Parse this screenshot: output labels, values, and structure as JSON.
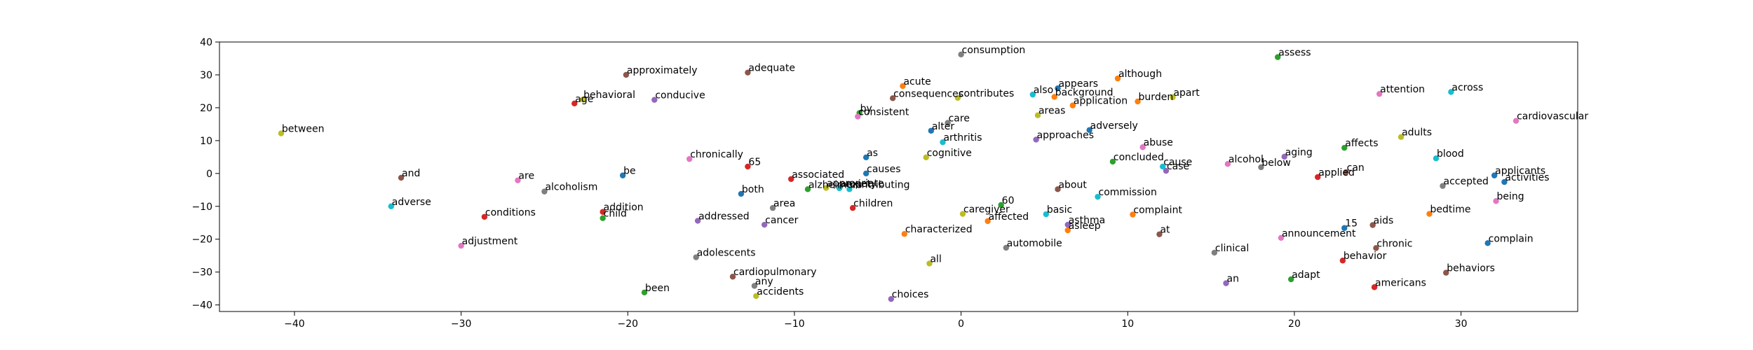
{
  "chart_data": {
    "type": "scatter",
    "title": "",
    "xlabel": "",
    "ylabel": "",
    "xlim": [
      -44.5,
      37
    ],
    "ylim": [
      -42,
      40
    ],
    "xticks": [
      -40,
      -30,
      -20,
      -10,
      0,
      10,
      20,
      30
    ],
    "yticks": [
      -40,
      -30,
      -20,
      -10,
      0,
      10,
      20,
      30,
      40
    ],
    "grid": false,
    "legend": "none",
    "palette": [
      "#1f77b4",
      "#ff7f0e",
      "#2ca02c",
      "#d62728",
      "#9467bd",
      "#8c564b",
      "#e377c2",
      "#7f7f7f",
      "#bcbd22",
      "#17becf"
    ],
    "points": [
      {
        "label": "between",
        "x": -40.8,
        "y": 12.2,
        "c": 8
      },
      {
        "label": "and",
        "x": -33.6,
        "y": -1.3,
        "c": 5
      },
      {
        "label": "adverse",
        "x": -34.2,
        "y": -10.0,
        "c": 9
      },
      {
        "label": "adjustment",
        "x": -30.0,
        "y": -22.0,
        "c": 6
      },
      {
        "label": "conditions",
        "x": -28.6,
        "y": -13.2,
        "c": 3
      },
      {
        "label": "are",
        "x": -26.6,
        "y": -2.1,
        "c": 6
      },
      {
        "label": "alcoholism",
        "x": -25.0,
        "y": -5.5,
        "c": 7
      },
      {
        "label": "age",
        "x": -23.2,
        "y": 21.3,
        "c": 3
      },
      {
        "label": "behavioral",
        "x": -22.7,
        "y": 22.5,
        "c": 8
      },
      {
        "label": "addition",
        "x": -21.5,
        "y": -11.7,
        "c": 3
      },
      {
        "label": "child",
        "x": -21.5,
        "y": -13.6,
        "c": 2
      },
      {
        "label": "be",
        "x": -20.3,
        "y": -0.6,
        "c": 0
      },
      {
        "label": "approximately",
        "x": -20.1,
        "y": 30.0,
        "c": 5
      },
      {
        "label": "been",
        "x": -19.0,
        "y": -36.2,
        "c": 2
      },
      {
        "label": "conducive",
        "x": -18.4,
        "y": 22.4,
        "c": 4
      },
      {
        "label": "adolescents",
        "x": -15.9,
        "y": -25.5,
        "c": 7
      },
      {
        "label": "addressed",
        "x": -15.8,
        "y": -14.4,
        "c": 4
      },
      {
        "label": "chronically",
        "x": -16.3,
        "y": 4.4,
        "c": 6
      },
      {
        "label": "cardiopulmonary",
        "x": -13.7,
        "y": -31.4,
        "c": 5
      },
      {
        "label": "adequate",
        "x": -12.8,
        "y": 30.7,
        "c": 5
      },
      {
        "label": "65",
        "x": -12.8,
        "y": 2.1,
        "c": 3
      },
      {
        "label": "any",
        "x": -12.4,
        "y": -34.2,
        "c": 7
      },
      {
        "label": "accidents",
        "x": -12.3,
        "y": -37.3,
        "c": 8
      },
      {
        "label": "cancer",
        "x": -11.8,
        "y": -15.6,
        "c": 4
      },
      {
        "label": "area",
        "x": -11.3,
        "y": -10.5,
        "c": 7
      },
      {
        "label": "both",
        "x": -13.2,
        "y": -6.2,
        "c": 0
      },
      {
        "label": "associated",
        "x": -10.2,
        "y": -1.7,
        "c": 3
      },
      {
        "label": "alzheimers",
        "x": -9.2,
        "y": -4.8,
        "c": 2
      },
      {
        "label": "appropriate",
        "x": -8.1,
        "y": -4.4,
        "c": 8
      },
      {
        "label": "anxiety",
        "x": -7.3,
        "y": -4.5,
        "c": 9
      },
      {
        "label": "contributing",
        "x": -6.7,
        "y": -4.8,
        "c": 9
      },
      {
        "label": "children",
        "x": -6.5,
        "y": -10.5,
        "c": 3
      },
      {
        "label": "by",
        "x": -6.1,
        "y": 18.4,
        "c": 2
      },
      {
        "label": "consistent",
        "x": -6.2,
        "y": 17.3,
        "c": 6
      },
      {
        "label": "as",
        "x": -5.7,
        "y": 4.9,
        "c": 0
      },
      {
        "label": "causes",
        "x": -5.7,
        "y": 0.0,
        "c": 0
      },
      {
        "label": "characterized",
        "x": -3.4,
        "y": -18.4,
        "c": 1
      },
      {
        "label": "acute",
        "x": -3.5,
        "y": 26.6,
        "c": 1
      },
      {
        "label": "consequences",
        "x": -4.1,
        "y": 22.9,
        "c": 5
      },
      {
        "label": "choices",
        "x": -4.2,
        "y": -38.2,
        "c": 4
      },
      {
        "label": "all",
        "x": -1.9,
        "y": -27.4,
        "c": 8
      },
      {
        "label": "cognitive",
        "x": -2.1,
        "y": 4.9,
        "c": 8
      },
      {
        "label": "alter",
        "x": -1.8,
        "y": 13.0,
        "c": 0
      },
      {
        "label": "care",
        "x": -0.8,
        "y": 15.4,
        "c": 7
      },
      {
        "label": "arthritis",
        "x": -1.1,
        "y": 9.5,
        "c": 9
      },
      {
        "label": "contributes",
        "x": -0.2,
        "y": 23.0,
        "c": 8
      },
      {
        "label": "consumption",
        "x": 0.0,
        "y": 36.2,
        "c": 7
      },
      {
        "label": "caregiver",
        "x": 0.1,
        "y": -12.3,
        "c": 8
      },
      {
        "label": "60",
        "x": 2.4,
        "y": -9.6,
        "c": 2
      },
      {
        "label": "affected",
        "x": 1.6,
        "y": -14.5,
        "c": 1
      },
      {
        "label": "automobile",
        "x": 2.7,
        "y": -22.6,
        "c": 7
      },
      {
        "label": "areas",
        "x": 4.6,
        "y": 17.7,
        "c": 8
      },
      {
        "label": "approaches",
        "x": 4.5,
        "y": 10.3,
        "c": 4
      },
      {
        "label": "also",
        "x": 4.3,
        "y": 24.0,
        "c": 9
      },
      {
        "label": "appears",
        "x": 5.8,
        "y": 25.9,
        "c": 0
      },
      {
        "label": "background",
        "x": 5.6,
        "y": 23.3,
        "c": 1
      },
      {
        "label": "application",
        "x": 6.7,
        "y": 20.7,
        "c": 1
      },
      {
        "label": "about",
        "x": 5.8,
        "y": -4.8,
        "c": 5
      },
      {
        "label": "basic",
        "x": 5.1,
        "y": -12.4,
        "c": 9
      },
      {
        "label": "asthma",
        "x": 6.4,
        "y": -15.6,
        "c": 4
      },
      {
        "label": "asleep",
        "x": 6.4,
        "y": -17.3,
        "c": 1
      },
      {
        "label": "adversely",
        "x": 7.7,
        "y": 13.2,
        "c": 0
      },
      {
        "label": "commission",
        "x": 8.2,
        "y": -7.1,
        "c": 9
      },
      {
        "label": "although",
        "x": 9.4,
        "y": 28.9,
        "c": 1
      },
      {
        "label": "complaint",
        "x": 10.3,
        "y": -12.5,
        "c": 1
      },
      {
        "label": "burden",
        "x": 10.6,
        "y": 21.9,
        "c": 1
      },
      {
        "label": "abuse",
        "x": 10.9,
        "y": 8.0,
        "c": 6
      },
      {
        "label": "concluded",
        "x": 9.1,
        "y": 3.6,
        "c": 2
      },
      {
        "label": "apart",
        "x": 12.7,
        "y": 23.2,
        "c": 8
      },
      {
        "label": "at",
        "x": 11.9,
        "y": -18.5,
        "c": 5
      },
      {
        "label": "case",
        "x": 12.3,
        "y": 0.8,
        "c": 4
      },
      {
        "label": "cause",
        "x": 12.1,
        "y": 2.1,
        "c": 9
      },
      {
        "label": "clinical",
        "x": 15.2,
        "y": -24.1,
        "c": 7
      },
      {
        "label": "an",
        "x": 15.9,
        "y": -33.4,
        "c": 4
      },
      {
        "label": "alcohol",
        "x": 16.0,
        "y": 2.9,
        "c": 6
      },
      {
        "label": "below",
        "x": 18.0,
        "y": 1.9,
        "c": 7
      },
      {
        "label": "aging",
        "x": 19.4,
        "y": 5.1,
        "c": 4
      },
      {
        "label": "assess",
        "x": 19.0,
        "y": 35.4,
        "c": 2
      },
      {
        "label": "announcement",
        "x": 19.2,
        "y": -19.6,
        "c": 6
      },
      {
        "label": "adapt",
        "x": 19.8,
        "y": -32.2,
        "c": 2
      },
      {
        "label": "applied",
        "x": 21.4,
        "y": -1.1,
        "c": 3
      },
      {
        "label": "affects",
        "x": 23.0,
        "y": 7.8,
        "c": 2
      },
      {
        "label": "can",
        "x": 23.1,
        "y": 0.4,
        "c": 5
      },
      {
        "label": "15",
        "x": 23.0,
        "y": -16.6,
        "c": 0
      },
      {
        "label": "behavior",
        "x": 22.9,
        "y": -26.5,
        "c": 3
      },
      {
        "label": "aids",
        "x": 24.7,
        "y": -15.7,
        "c": 5
      },
      {
        "label": "chronic",
        "x": 24.9,
        "y": -22.7,
        "c": 5
      },
      {
        "label": "americans",
        "x": 24.8,
        "y": -34.6,
        "c": 3
      },
      {
        "label": "attention",
        "x": 25.1,
        "y": 24.2,
        "c": 6
      },
      {
        "label": "adults",
        "x": 26.4,
        "y": 11.1,
        "c": 8
      },
      {
        "label": "bedtime",
        "x": 28.1,
        "y": -12.3,
        "c": 1
      },
      {
        "label": "blood",
        "x": 28.5,
        "y": 4.6,
        "c": 9
      },
      {
        "label": "accepted",
        "x": 28.9,
        "y": -3.8,
        "c": 7
      },
      {
        "label": "behaviors",
        "x": 29.1,
        "y": -30.2,
        "c": 5
      },
      {
        "label": "across",
        "x": 29.4,
        "y": 24.8,
        "c": 9
      },
      {
        "label": "complain",
        "x": 31.6,
        "y": -21.2,
        "c": 0
      },
      {
        "label": "applicants",
        "x": 32.0,
        "y": -0.6,
        "c": 0
      },
      {
        "label": "activities",
        "x": 32.6,
        "y": -2.6,
        "c": 0
      },
      {
        "label": "being",
        "x": 32.1,
        "y": -8.4,
        "c": 6
      },
      {
        "label": "cardiovascular",
        "x": 33.3,
        "y": 16.0,
        "c": 6
      }
    ]
  }
}
